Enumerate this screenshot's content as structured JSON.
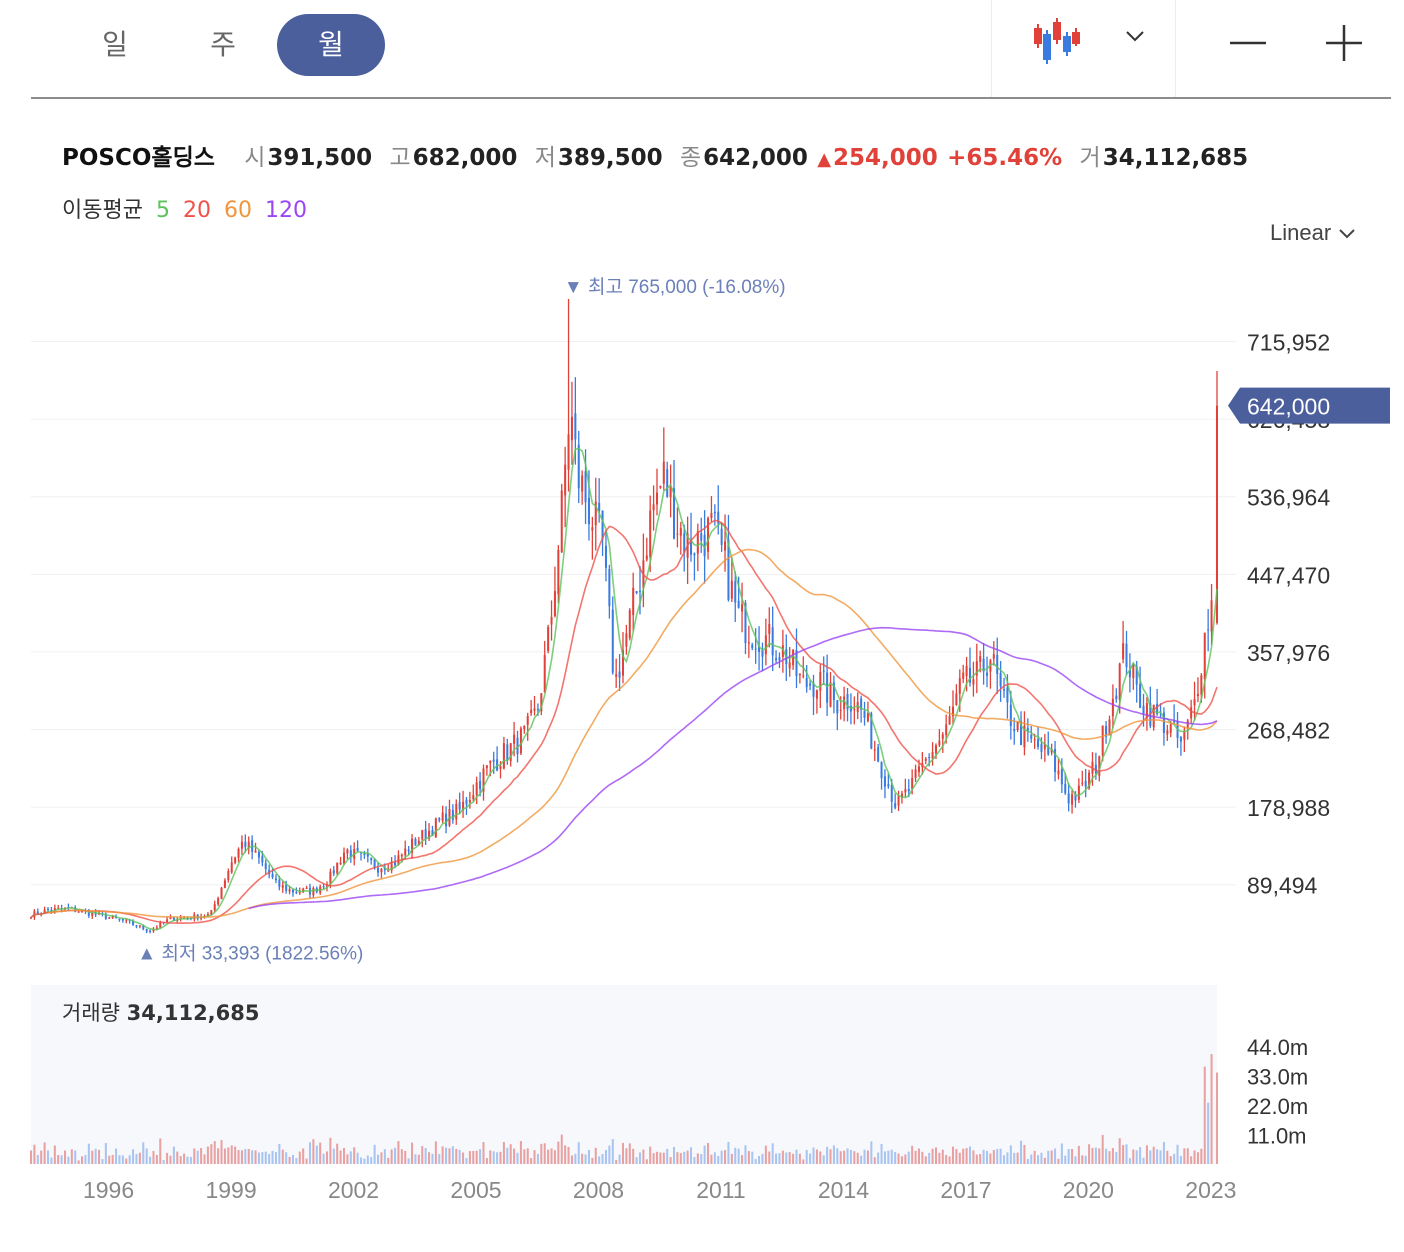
{
  "tabs": [
    {
      "label": "일",
      "active": false
    },
    {
      "label": "주",
      "active": false
    },
    {
      "label": "월",
      "active": true
    }
  ],
  "toolbar": {
    "chart_type_icon": "candlestick-icon",
    "dropdown_icon": "chevron-down-icon",
    "zoom_out_icon": "minus-icon",
    "zoom_in_icon": "plus-icon"
  },
  "summary": {
    "name": "POSCO홀딩스",
    "open_label": "시",
    "open": "391,500",
    "high_label": "고",
    "high": "682,000",
    "low_label": "저",
    "low": "389,500",
    "close_label": "종",
    "close": "642,000",
    "change_arrow": "▲",
    "change": "254,000",
    "change_pct": "+65.46%",
    "volume_label": "거",
    "volume": "34,112,685"
  },
  "ma_legend": {
    "label": "이동평균",
    "periods": [
      "5",
      "20",
      "60",
      "120"
    ],
    "colors": [
      "#5cc35c",
      "#f0524a",
      "#f0963c",
      "#9b45f5"
    ]
  },
  "scale_select": {
    "label": "Linear",
    "icon": "chevron-down-icon"
  },
  "colors": {
    "up": "#e0423a",
    "down": "#3a7be0",
    "accent": "#4a5f9c",
    "marker": "#6b80b8"
  },
  "chart_data": {
    "type": "candlestick",
    "interval": "monthly",
    "x_tick_labels": [
      "1996",
      "1999",
      "2002",
      "2005",
      "2008",
      "2011",
      "2014",
      "2017",
      "2020",
      "2023"
    ],
    "y_tick_labels": [
      "715,952",
      "626,458",
      "536,964",
      "447,470",
      "357,976",
      "268,482",
      "178,988",
      "89,494"
    ],
    "y_ticks": [
      715952,
      626458,
      536964,
      447470,
      357976,
      268482,
      178988,
      89494
    ],
    "ylim": [
      0,
      760000
    ],
    "x_range": [
      1994.6,
      2023.65
    ],
    "current_price": {
      "label": "642,000",
      "value": 642000
    },
    "high_marker": {
      "label": "최고",
      "value_text": "765,000 (-16.08%)",
      "value": 765000,
      "x": 2007.8,
      "arrow": "▼"
    },
    "low_marker": {
      "label": "최저",
      "value_text": "33,393 (1822.56%)",
      "value": 33393,
      "x": 1997.5,
      "arrow": "▲"
    },
    "price_anchors": [
      [
        1994.6,
        55000
      ],
      [
        1995.0,
        60000
      ],
      [
        1995.5,
        62000
      ],
      [
        1996.0,
        57000
      ],
      [
        1996.5,
        52000
      ],
      [
        1997.0,
        46000
      ],
      [
        1997.5,
        36000
      ],
      [
        1998.0,
        50000
      ],
      [
        1998.5,
        52000
      ],
      [
        1999.0,
        55000
      ],
      [
        1999.5,
        115000
      ],
      [
        1999.8,
        140000
      ],
      [
        2000.2,
        118000
      ],
      [
        2000.6,
        90000
      ],
      [
        2001.0,
        82000
      ],
      [
        2001.5,
        82000
      ],
      [
        2001.9,
        96000
      ],
      [
        2002.3,
        130000
      ],
      [
        2002.7,
        120000
      ],
      [
        2003.1,
        110000
      ],
      [
        2003.5,
        115000
      ],
      [
        2003.9,
        135000
      ],
      [
        2004.3,
        150000
      ],
      [
        2004.7,
        165000
      ],
      [
        2005.1,
        175000
      ],
      [
        2005.5,
        205000
      ],
      [
        2005.9,
        230000
      ],
      [
        2006.3,
        245000
      ],
      [
        2006.7,
        262000
      ],
      [
        2007.0,
        290000
      ],
      [
        2007.3,
        380000
      ],
      [
        2007.6,
        520000
      ],
      [
        2007.8,
        640000
      ],
      [
        2008.0,
        560000
      ],
      [
        2008.3,
        520000
      ],
      [
        2008.6,
        480000
      ],
      [
        2008.9,
        320000
      ],
      [
        2009.2,
        380000
      ],
      [
        2009.5,
        440000
      ],
      [
        2009.8,
        520000
      ],
      [
        2010.1,
        560000
      ],
      [
        2010.4,
        510000
      ],
      [
        2010.7,
        480000
      ],
      [
        2011.0,
        490000
      ],
      [
        2011.3,
        500000
      ],
      [
        2011.6,
        460000
      ],
      [
        2011.9,
        400000
      ],
      [
        2012.3,
        380000
      ],
      [
        2012.7,
        370000
      ],
      [
        2013.1,
        355000
      ],
      [
        2013.5,
        320000
      ],
      [
        2013.9,
        325000
      ],
      [
        2014.3,
        300000
      ],
      [
        2014.7,
        305000
      ],
      [
        2015.0,
        285000
      ],
      [
        2015.4,
        230000
      ],
      [
        2015.8,
        180000
      ],
      [
        2016.2,
        205000
      ],
      [
        2016.6,
        240000
      ],
      [
        2017.0,
        265000
      ],
      [
        2017.4,
        320000
      ],
      [
        2017.8,
        330000
      ],
      [
        2018.1,
        355000
      ],
      [
        2018.4,
        300000
      ],
      [
        2018.8,
        265000
      ],
      [
        2019.2,
        250000
      ],
      [
        2019.6,
        235000
      ],
      [
        2020.0,
        190000
      ],
      [
        2020.3,
        195000
      ],
      [
        2020.7,
        230000
      ],
      [
        2021.0,
        290000
      ],
      [
        2021.4,
        360000
      ],
      [
        2021.7,
        310000
      ],
      [
        2022.0,
        290000
      ],
      [
        2022.4,
        275000
      ],
      [
        2022.8,
        250000
      ],
      [
        2023.1,
        300000
      ],
      [
        2023.4,
        390000
      ],
      [
        2023.55,
        420000
      ],
      [
        2023.65,
        642000
      ]
    ],
    "ma_lines": [
      {
        "period": "5",
        "color": "#5cc35c",
        "start": 1994.6
      },
      {
        "period": "20",
        "color": "#f0524a",
        "start": 1994.6
      },
      {
        "period": "60",
        "color": "#f0963c",
        "start": 1995.0
      },
      {
        "period": "120",
        "color": "#9b45f5",
        "start": 1999.9
      }
    ],
    "volume": {
      "label": "거래량",
      "value": "34,112,685",
      "y_tick_labels": [
        "44.0m",
        "33.0m",
        "22.0m",
        "11.0m"
      ],
      "y_ticks": [
        44,
        33,
        22,
        11
      ],
      "ylim": [
        0,
        44
      ],
      "unit": "m"
    }
  }
}
